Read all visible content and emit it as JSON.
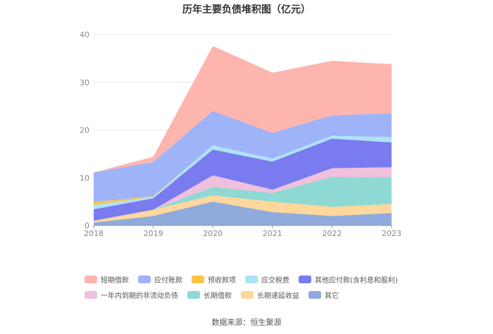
{
  "title": "历年主要负债堆积图（亿元）",
  "source": "数据来源：恒生聚源",
  "chart_data": {
    "type": "area",
    "stacked": true,
    "title": "历年主要负债堆积图（亿元）",
    "x": [
      "2018",
      "2019",
      "2020",
      "2021",
      "2022",
      "2023"
    ],
    "ylim": [
      0,
      40
    ],
    "yticks": [
      0,
      10,
      20,
      30,
      40
    ],
    "grid": true,
    "legend_position": "bottom",
    "series": [
      {
        "name": "其它",
        "color": "#8FAADC",
        "values": [
          0.6,
          2.0,
          5.0,
          2.8,
          2.0,
          2.6
        ]
      },
      {
        "name": "长期递延收益",
        "color": "#FDD79B",
        "values": [
          0.4,
          1.3,
          1.3,
          2.2,
          1.9,
          1.9
        ]
      },
      {
        "name": "长期借款",
        "color": "#8ED9D4",
        "values": [
          0.0,
          0.0,
          1.8,
          1.8,
          6.3,
          5.6
        ]
      },
      {
        "name": "一年内到期的非流动负债",
        "color": "#F0C0DC",
        "values": [
          0.0,
          0.0,
          2.4,
          0.7,
          1.8,
          2.1
        ]
      },
      {
        "name": "其他应付款(含利息和股利)",
        "color": "#7B7BF0",
        "values": [
          2.4,
          2.4,
          5.4,
          5.9,
          6.2,
          5.2
        ]
      },
      {
        "name": "应交税费",
        "color": "#ADE3F7",
        "values": [
          0.9,
          0.3,
          0.9,
          0.6,
          0.6,
          1.1
        ]
      },
      {
        "name": "预收款项",
        "color": "#FFC440",
        "values": [
          0.6,
          0.1,
          0.0,
          0.0,
          0.0,
          0.0
        ]
      },
      {
        "name": "应付账款",
        "color": "#9FB3F9",
        "values": [
          6.2,
          7.2,
          7.2,
          5.4,
          4.3,
          5.0
        ]
      },
      {
        "name": "短期借款",
        "color": "#FDB5AE",
        "values": [
          0.0,
          1.1,
          13.6,
          12.6,
          11.4,
          10.3
        ]
      }
    ]
  },
  "legend": {
    "row1": [
      "短期借款",
      "应付账款",
      "预收款项",
      "应交税费",
      "其他应付款(含利息和股利)"
    ],
    "row2": [
      "一年内到期的非流动负债",
      "长期借款",
      "长期递延收益",
      "其它"
    ]
  }
}
